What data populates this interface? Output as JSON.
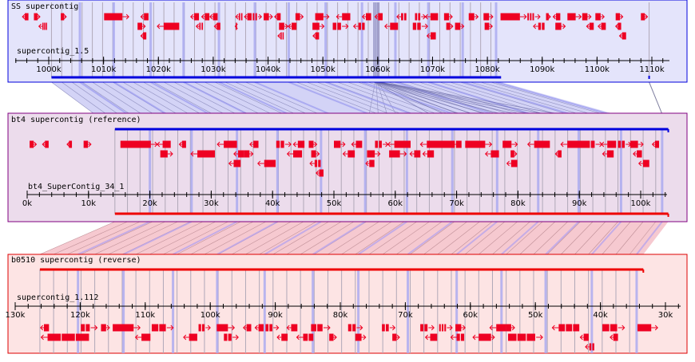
{
  "panels": [
    {
      "id": "ss",
      "title": "SS supercontig",
      "contig": "supercontig_1.5",
      "orientation": "forward",
      "bg": "#e4e4fb",
      "border": "#0000dd",
      "range_kb": [
        995,
        1114
      ],
      "ticks": [
        "1000k",
        "1010k",
        "1020k",
        "1030k",
        "1040k",
        "1050k",
        "1060k",
        "1070k",
        "1080k",
        "1090k",
        "1100k",
        "1110k"
      ],
      "tick_values_kb": [
        1000,
        1010,
        1020,
        1030,
        1040,
        1050,
        1060,
        1070,
        1080,
        1090,
        1100,
        1110
      ],
      "aligned_span_kb": [
        1000.5,
        1082.5
      ],
      "aligned_point_kb": 1109.5,
      "genes": [
        {
          "s": 995.2,
          "e": 996.3,
          "row": 0,
          "dir": "-"
        },
        {
          "s": 997.3,
          "e": 998.4,
          "row": 0,
          "dir": "+",
          "blocks": 3
        },
        {
          "s": 998.2,
          "e": 999.8,
          "row": 1,
          "dir": "-",
          "blocks": 3
        },
        {
          "s": 1002.2,
          "e": 1003.2,
          "row": 0,
          "dir": "+"
        },
        {
          "s": 1010.1,
          "e": 1014.6,
          "row": 0,
          "dir": "+"
        },
        {
          "s": 1016.8,
          "e": 1018.2,
          "row": 0,
          "dir": "-"
        },
        {
          "s": 1016.2,
          "e": 1017.6,
          "row": 1,
          "dir": "+"
        },
        {
          "s": 1016.8,
          "e": 1017.8,
          "row": 2,
          "dir": "-"
        },
        {
          "s": 1019.8,
          "e": 1023.8,
          "row": 1,
          "dir": "-"
        },
        {
          "s": 1025.9,
          "e": 1027.4,
          "row": 0,
          "dir": "tri-"
        },
        {
          "s": 1027.9,
          "e": 1029.3,
          "row": 0,
          "dir": "-"
        },
        {
          "s": 1029.4,
          "e": 1030.8,
          "row": 0,
          "dir": "tri+"
        },
        {
          "s": 1026.9,
          "e": 1028.3,
          "row": 1,
          "dir": "-",
          "blocks": 2
        },
        {
          "s": 1030.2,
          "e": 1031.3,
          "row": 1,
          "dir": "-"
        },
        {
          "s": 1034.1,
          "e": 1035.5,
          "row": 0,
          "dir": "-",
          "blocks": 2
        },
        {
          "s": 1035.7,
          "e": 1037.0,
          "row": 0,
          "dir": "-"
        },
        {
          "s": 1037.2,
          "e": 1038.8,
          "row": 0,
          "dir": "+",
          "blocks": 2
        },
        {
          "s": 1039.2,
          "e": 1040.8,
          "row": 0,
          "dir": "+"
        },
        {
          "s": 1041.2,
          "e": 1042.3,
          "row": 0,
          "dir": "tri+"
        },
        {
          "s": 1034.0,
          "e": 1034.3,
          "row": 1,
          "dir": "-"
        },
        {
          "s": 1042.0,
          "e": 1043.6,
          "row": 1,
          "dir": "+"
        },
        {
          "s": 1043.7,
          "e": 1045.2,
          "row": 1,
          "dir": "-"
        },
        {
          "s": 1041.8,
          "e": 1043.0,
          "row": 2,
          "dir": "-",
          "blocks": 2
        },
        {
          "s": 1045.0,
          "e": 1046.4,
          "row": 0,
          "dir": "+"
        },
        {
          "s": 1048.1,
          "e": 1050.2,
          "row": 1,
          "dir": "+"
        },
        {
          "s": 1048.2,
          "e": 1049.3,
          "row": 2,
          "dir": "-"
        },
        {
          "s": 1048.6,
          "e": 1051.1,
          "row": 0,
          "dir": "+"
        },
        {
          "s": 1052.5,
          "e": 1055.0,
          "row": 0,
          "dir": "-"
        },
        {
          "s": 1051.8,
          "e": 1054.6,
          "row": 1,
          "dir": "+",
          "blocks": 2
        },
        {
          "s": 1055.6,
          "e": 1057.8,
          "row": 1,
          "dir": "-",
          "blocks": 2
        },
        {
          "s": 1057.2,
          "e": 1058.8,
          "row": 0,
          "dir": "-"
        },
        {
          "s": 1059.5,
          "e": 1060.9,
          "row": 0,
          "dir": "-"
        },
        {
          "s": 1061.3,
          "e": 1063.7,
          "row": 1,
          "dir": "-"
        },
        {
          "s": 1063.5,
          "e": 1065.4,
          "row": 0,
          "dir": "-",
          "blocks": 2
        },
        {
          "s": 1066.8,
          "e": 1068.7,
          "row": 0,
          "dir": "+",
          "blocks": 2
        },
        {
          "s": 1068.7,
          "e": 1071.0,
          "row": 0,
          "dir": "-"
        },
        {
          "s": 1066.4,
          "e": 1069.1,
          "row": 1,
          "dir": "+",
          "blocks": 2
        },
        {
          "s": 1069.0,
          "e": 1070.6,
          "row": 2,
          "dir": "-"
        },
        {
          "s": 1072.1,
          "e": 1073.6,
          "row": 0,
          "dir": "+"
        },
        {
          "s": 1072.5,
          "e": 1073.7,
          "row": 1,
          "dir": "+"
        },
        {
          "s": 1074.1,
          "e": 1075.7,
          "row": 1,
          "dir": "+"
        },
        {
          "s": 1076.6,
          "e": 1078.3,
          "row": 0,
          "dir": "+"
        },
        {
          "s": 1079.3,
          "e": 1081.0,
          "row": 0,
          "dir": "+"
        },
        {
          "s": 1079.5,
          "e": 1080.9,
          "row": 1,
          "dir": "+"
        },
        {
          "s": 1082.4,
          "e": 1087.1,
          "row": 0,
          "dir": "+"
        },
        {
          "s": 1087.3,
          "e": 1089.6,
          "row": 0,
          "dir": "+",
          "blocks": 3
        },
        {
          "s": 1088.4,
          "e": 1090.6,
          "row": 1,
          "dir": "-",
          "blocks": 2
        },
        {
          "s": 1090.7,
          "e": 1091.5,
          "row": 0,
          "dir": "+"
        },
        {
          "s": 1092.0,
          "e": 1093.3,
          "row": 0,
          "dir": "-"
        },
        {
          "s": 1092.4,
          "e": 1094.2,
          "row": 1,
          "dir": "+"
        },
        {
          "s": 1094.6,
          "e": 1097.1,
          "row": 0,
          "dir": "+"
        },
        {
          "s": 1097.3,
          "e": 1098.9,
          "row": 0,
          "dir": "+"
        },
        {
          "s": 1098.1,
          "e": 1099.4,
          "row": 1,
          "dir": "-"
        },
        {
          "s": 1100.2,
          "e": 1101.6,
          "row": 1,
          "dir": "-"
        },
        {
          "s": 1099.7,
          "e": 1101.3,
          "row": 0,
          "dir": "+"
        },
        {
          "s": 1103.4,
          "e": 1104.7,
          "row": 0,
          "dir": "+"
        },
        {
          "s": 1103.4,
          "e": 1104.4,
          "row": 1,
          "dir": "-"
        },
        {
          "s": 1104.1,
          "e": 1105.3,
          "row": 2,
          "dir": "-"
        },
        {
          "s": 1108.0,
          "e": 1109.2,
          "row": 0,
          "dir": "+"
        }
      ]
    },
    {
      "id": "bt4",
      "title": "bt4 supercontig (reference)",
      "contig": "bt4_SuperContig_34_1",
      "orientation": "forward",
      "bg": "#ecdcec",
      "border": "#800080",
      "range_kb": [
        0,
        104.5
      ],
      "ticks": [
        "0k",
        "10k",
        "20k",
        "30k",
        "40k",
        "50k",
        "60k",
        "70k",
        "80k",
        "90k",
        "100k"
      ],
      "tick_values_kb": [
        0,
        10,
        20,
        30,
        40,
        50,
        60,
        70,
        80,
        90,
        100
      ],
      "aligned_span_kb": [
        14.3,
        104.5
      ],
      "genes": [
        {
          "s": 0.4,
          "e": 1.5,
          "row": 0,
          "dir": "+"
        },
        {
          "s": 2.5,
          "e": 3.5,
          "row": 0,
          "dir": "-"
        },
        {
          "s": 6.5,
          "e": 7.3,
          "row": 0,
          "dir": "-"
        },
        {
          "s": 9.2,
          "e": 10.4,
          "row": 0,
          "dir": "+"
        },
        {
          "s": 15.2,
          "e": 21.2,
          "row": 0,
          "dir": "+"
        },
        {
          "s": 21.2,
          "e": 23.4,
          "row": 0,
          "dir": "-"
        },
        {
          "s": 21.7,
          "e": 23.7,
          "row": 1,
          "dir": "+"
        },
        {
          "s": 24.8,
          "e": 25.9,
          "row": 0,
          "dir": "tri-"
        },
        {
          "s": 26.7,
          "e": 30.6,
          "row": 1,
          "dir": "tri-"
        },
        {
          "s": 31.0,
          "e": 34.2,
          "row": 0,
          "dir": "tri+"
        },
        {
          "s": 33.7,
          "e": 35.4,
          "row": 1,
          "dir": "-"
        },
        {
          "s": 36.3,
          "e": 37.7,
          "row": 0,
          "dir": "tri+"
        },
        {
          "s": 32.9,
          "e": 34.8,
          "row": 2,
          "dir": "-"
        },
        {
          "s": 35.4,
          "e": 36.8,
          "row": 1,
          "dir": "+"
        },
        {
          "s": 37.6,
          "e": 40.5,
          "row": 2,
          "dir": "-"
        },
        {
          "s": 40.6,
          "e": 43.0,
          "row": 0,
          "dir": "+",
          "blocks": 2
        },
        {
          "s": 43.4,
          "e": 45.2,
          "row": 0,
          "dir": "-"
        },
        {
          "s": 45.9,
          "e": 47.2,
          "row": 0,
          "dir": "+"
        },
        {
          "s": 42.4,
          "e": 44.8,
          "row": 1,
          "dir": "-"
        },
        {
          "s": 46.3,
          "e": 47.6,
          "row": 1,
          "dir": "+"
        },
        {
          "s": 46.1,
          "e": 48.0,
          "row": 2,
          "dir": "-",
          "blocks": 2
        },
        {
          "s": 47.1,
          "e": 48.3,
          "row": 3,
          "dir": "-"
        },
        {
          "s": 50.0,
          "e": 51.8,
          "row": 0,
          "dir": "+"
        },
        {
          "s": 51.5,
          "e": 53.4,
          "row": 1,
          "dir": "-"
        },
        {
          "s": 52.9,
          "e": 54.6,
          "row": 0,
          "dir": "tri+"
        },
        {
          "s": 55.4,
          "e": 57.5,
          "row": 1,
          "dir": "+"
        },
        {
          "s": 55.2,
          "e": 56.6,
          "row": 2,
          "dir": "-"
        },
        {
          "s": 56.7,
          "e": 58.8,
          "row": 0,
          "dir": "+",
          "blocks": 2
        },
        {
          "s": 58.8,
          "e": 62.5,
          "row": 0,
          "dir": "-"
        },
        {
          "s": 59.0,
          "e": 61.8,
          "row": 1,
          "dir": "+"
        },
        {
          "s": 62.4,
          "e": 64.1,
          "row": 1,
          "dir": "-"
        },
        {
          "s": 64.5,
          "e": 66.3,
          "row": 1,
          "dir": "-"
        },
        {
          "s": 64.1,
          "e": 69.7,
          "row": 0,
          "dir": "-"
        },
        {
          "s": 69.3,
          "e": 70.8,
          "row": 0,
          "dir": "-"
        },
        {
          "s": 71.4,
          "e": 75.7,
          "row": 0,
          "dir": "+"
        },
        {
          "s": 74.7,
          "e": 76.9,
          "row": 1,
          "dir": "-"
        },
        {
          "s": 77.5,
          "e": 79.9,
          "row": 0,
          "dir": "+"
        },
        {
          "s": 78.8,
          "e": 79.8,
          "row": 1,
          "dir": "+"
        },
        {
          "s": 78.2,
          "e": 79.9,
          "row": 2,
          "dir": "-"
        },
        {
          "s": 81.6,
          "e": 85.2,
          "row": 0,
          "dir": "tri+"
        },
        {
          "s": 86.1,
          "e": 87.1,
          "row": 1,
          "dir": "-"
        },
        {
          "s": 87.0,
          "e": 91.5,
          "row": 0,
          "dir": "-"
        },
        {
          "s": 91.1,
          "e": 93.7,
          "row": 0,
          "dir": "+",
          "blocks": 2
        },
        {
          "s": 93.8,
          "e": 95.6,
          "row": 1,
          "dir": "tri-"
        },
        {
          "s": 93.6,
          "e": 96.0,
          "row": 0,
          "dir": "-"
        },
        {
          "s": 96.3,
          "e": 98.4,
          "row": 0,
          "dir": "+",
          "blocks": 2
        },
        {
          "s": 98.3,
          "e": 100.4,
          "row": 0,
          "dir": "+"
        },
        {
          "s": 98.8,
          "e": 100.2,
          "row": 1,
          "dir": "-"
        },
        {
          "s": 99.7,
          "e": 101.4,
          "row": 2,
          "dir": "-"
        },
        {
          "s": 101.9,
          "e": 103.0,
          "row": 0,
          "dir": "-"
        }
      ]
    },
    {
      "id": "b0510",
      "title": "b0510 supercontig (reverse)",
      "contig": "supercontig_1.112",
      "orientation": "reverse",
      "bg": "#fde4e4",
      "border": "#dd0000",
      "range_kb": [
        130,
        26
      ],
      "ticks": [
        "130k",
        "120k",
        "110k",
        "100k",
        "90k",
        "80k",
        "70k",
        "60k",
        "50k",
        "40k",
        "30k"
      ],
      "tick_values_kb": [
        130,
        120,
        110,
        100,
        90,
        80,
        70,
        60,
        50,
        40,
        30
      ],
      "aligned_span_kb": [
        126.2,
        33.4
      ],
      "genes": [
        {
          "s": 126.1,
          "e": 124.8,
          "row": 0,
          "dir": "-r"
        },
        {
          "s": 126.0,
          "e": 118.5,
          "row": 1,
          "dir": "-r",
          "blocks": 3
        },
        {
          "s": 119.9,
          "e": 117.4,
          "row": 0,
          "dir": "+r",
          "blocks": 2
        },
        {
          "s": 116.8,
          "e": 115.5,
          "row": 0,
          "dir": "+r"
        },
        {
          "s": 115.0,
          "e": 110.8,
          "row": 0,
          "dir": "+r"
        },
        {
          "s": 111.5,
          "e": 109.2,
          "row": 1,
          "dir": "tri+r"
        },
        {
          "s": 109.0,
          "e": 105.7,
          "row": 0,
          "dir": "+r",
          "blocks": 2
        },
        {
          "s": 104.1,
          "e": 102.0,
          "row": 1,
          "dir": "-r"
        },
        {
          "s": 101.8,
          "e": 100.0,
          "row": 0,
          "dir": "+r",
          "blocks": 2
        },
        {
          "s": 99.0,
          "e": 96.3,
          "row": 0,
          "dir": "+r"
        },
        {
          "s": 97.9,
          "e": 95.7,
          "row": 1,
          "dir": "+r",
          "blocks": 2
        },
        {
          "s": 94.9,
          "e": 93.7,
          "row": 0,
          "dir": "-r"
        },
        {
          "s": 93.1,
          "e": 91.8,
          "row": 0,
          "dir": "-r"
        },
        {
          "s": 91.5,
          "e": 89.5,
          "row": 0,
          "dir": "+r",
          "blocks": 2
        },
        {
          "s": 89.7,
          "e": 88.1,
          "row": 1,
          "dir": "tri-r"
        },
        {
          "s": 88.2,
          "e": 86.6,
          "row": 0,
          "dir": "tri-r"
        },
        {
          "s": 86.7,
          "e": 84.0,
          "row": 1,
          "dir": "-r",
          "blocks": 2
        },
        {
          "s": 84.5,
          "e": 81.6,
          "row": 0,
          "dir": "+r",
          "blocks": 2
        },
        {
          "s": 81.7,
          "e": 80.6,
          "row": 1,
          "dir": "+r"
        },
        {
          "s": 78.8,
          "e": 76.6,
          "row": 0,
          "dir": "+r",
          "blocks": 2
        },
        {
          "s": 77.7,
          "e": 76.1,
          "row": 1,
          "dir": "+r"
        },
        {
          "s": 73.6,
          "e": 71.6,
          "row": 0,
          "dir": "+r",
          "blocks": 2
        },
        {
          "s": 72.0,
          "e": 70.9,
          "row": 1,
          "dir": "+r"
        },
        {
          "s": 67.7,
          "e": 65.6,
          "row": 0,
          "dir": "+r",
          "blocks": 2
        },
        {
          "s": 66.9,
          "e": 65.1,
          "row": 1,
          "dir": "-r"
        },
        {
          "s": 64.8,
          "e": 62.8,
          "row": 0,
          "dir": "+r",
          "blocks": 3
        },
        {
          "s": 62.3,
          "e": 60.8,
          "row": 0,
          "dir": "+r"
        },
        {
          "s": 63.0,
          "e": 60.8,
          "row": 1,
          "dir": "-r",
          "blocks": 2
        },
        {
          "s": 59.6,
          "e": 57.4,
          "row": 1,
          "dir": "-r"
        },
        {
          "s": 57.0,
          "e": 54.5,
          "row": 0,
          "dir": "tri-r"
        },
        {
          "s": 57.6,
          "e": 56.3,
          "row": 1,
          "dir": "+r"
        },
        {
          "s": 54.5,
          "e": 53.2,
          "row": 0,
          "dir": "+r"
        },
        {
          "s": 54.2,
          "e": 48.9,
          "row": 1,
          "dir": "+r",
          "blocks": 3
        },
        {
          "s": 47.4,
          "e": 43.1,
          "row": 0,
          "dir": "-r",
          "blocks": 3
        },
        {
          "s": 43.1,
          "e": 41.8,
          "row": 1,
          "dir": "-r"
        },
        {
          "s": 42.3,
          "e": 40.8,
          "row": 2,
          "dir": "-r",
          "blocks": 2
        },
        {
          "s": 39.7,
          "e": 36.3,
          "row": 0,
          "dir": "+r",
          "blocks": 2
        },
        {
          "s": 38.5,
          "e": 37.3,
          "row": 1,
          "dir": "-r"
        },
        {
          "s": 34.3,
          "e": 31.2,
          "row": 0,
          "dir": "+r"
        }
      ]
    }
  ],
  "colors": {
    "gene": "#ee0022",
    "ss_band": "#0000dd",
    "bt4_band_top": "#0000dd",
    "bt4_band_bottom": "#ee0000",
    "b0510_band": "#ee0000",
    "grid": "#b0a8b8",
    "grid_highlight": "#a8a8f0"
  }
}
